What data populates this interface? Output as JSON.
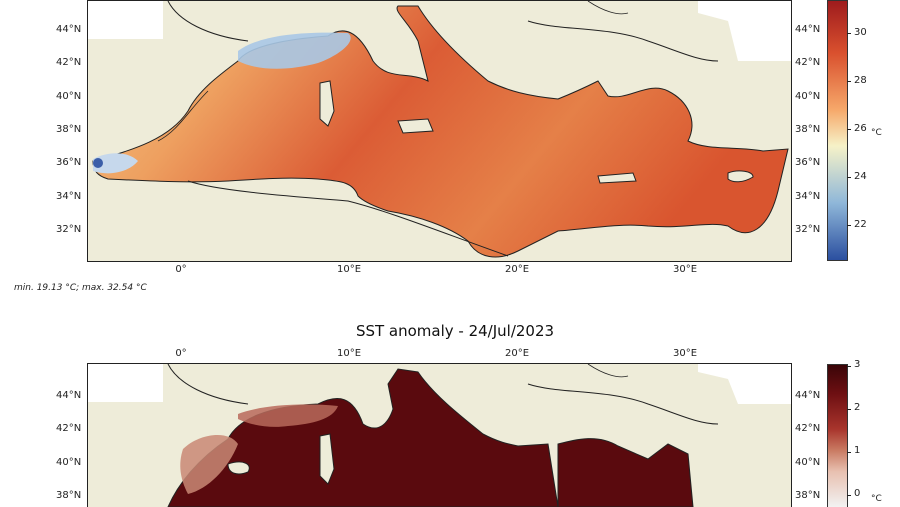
{
  "panel_sst": {
    "lat_labels": [
      "44°N",
      "42°N",
      "40°N",
      "38°N",
      "36°N",
      "34°N",
      "32°N"
    ],
    "lon_labels": [
      "0°",
      "10°E",
      "20°E",
      "30°E"
    ],
    "colorbar": {
      "ticks": [
        "30",
        "28",
        "26",
        "24",
        "22"
      ],
      "unit": "°C",
      "colors": [
        "#2b4fa0",
        "#8fb7d9",
        "#f6f2c8",
        "#f6a86a",
        "#d9502e",
        "#9e1b1d"
      ]
    },
    "min_max_text": "min. 19.13 °C; max. 32.54 °C"
  },
  "panel_anomaly": {
    "title": "SST anomaly - 24/Jul/2023",
    "lat_labels": [
      "44°N",
      "42°N",
      "40°N",
      "38°N"
    ],
    "lon_labels": [
      "0°",
      "10°E",
      "20°E",
      "30°E"
    ],
    "colorbar": {
      "ticks": [
        "3",
        "2",
        "1",
        "0"
      ],
      "unit": "°C",
      "colors": [
        "#f2f2f2",
        "#e8c0b0",
        "#c97a62",
        "#a8342c",
        "#6d0f12",
        "#3a0508"
      ]
    }
  },
  "colors": {
    "land": "#eeecd9",
    "sea_outside": "#ffffff",
    "sst_warm": "#d9552f",
    "sst_mid": "#f0a060",
    "sst_cool": "#a9c8e6",
    "anomaly_high": "#5a0a0e"
  }
}
